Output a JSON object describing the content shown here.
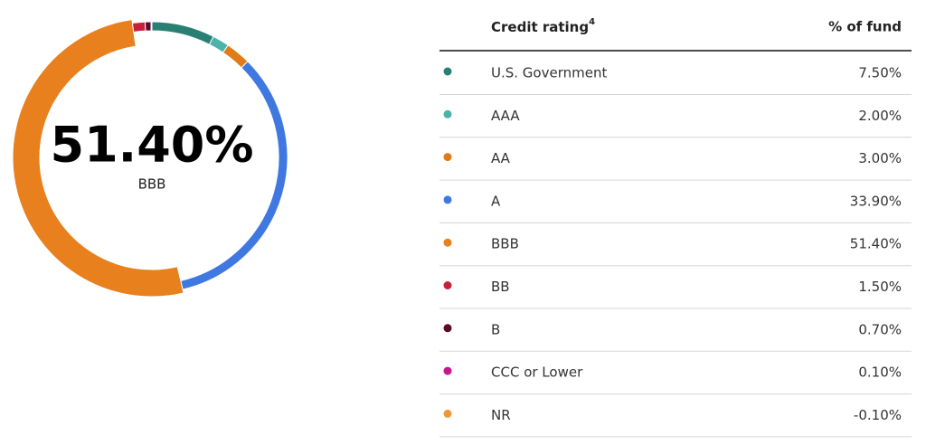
{
  "chart_data": {
    "type": "donut",
    "header": {
      "category": "Credit rating",
      "footnote": "4",
      "value": "% of fund"
    },
    "categories": [
      "U.S. Government",
      "AAA",
      "AA",
      "A",
      "BBB",
      "BB",
      "B",
      "CCC or Lower",
      "NR"
    ],
    "values": [
      7.5,
      2,
      3,
      33.9,
      51.4,
      1.5,
      0.7,
      0.1,
      -0.1
    ],
    "value_labels": [
      "7.50%",
      "2.00%",
      "3.00%",
      "33.90%",
      "51.40%",
      "1.50%",
      "0.70%",
      "0.10%",
      "-0.10%"
    ],
    "colors": [
      "#2a7f73",
      "#4db3aa",
      "#e07b18",
      "#3f78e0",
      "#e8801e",
      "#c8203a",
      "#5c0a2a",
      "#c8168f",
      "#eb9a3a"
    ],
    "highlight": 4
  }
}
